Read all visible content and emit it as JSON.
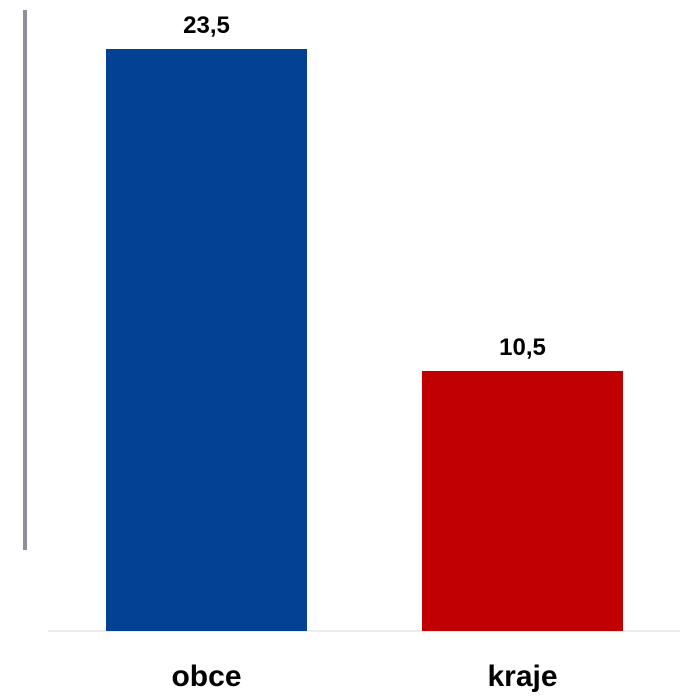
{
  "chart_data": {
    "type": "bar",
    "categories": [
      "obce",
      "kraje"
    ],
    "values": [
      23.5,
      10.5
    ],
    "value_labels": [
      "23,5",
      "10,5"
    ],
    "bar_colors": [
      "#034194",
      "#c00000"
    ],
    "axis_color": "#8c8e99",
    "baseline_color": "#d9d9d9",
    "title": "",
    "xlabel": "",
    "ylabel": "",
    "ylim": [
      0,
      23.5
    ],
    "grid": false,
    "legend": "none"
  }
}
